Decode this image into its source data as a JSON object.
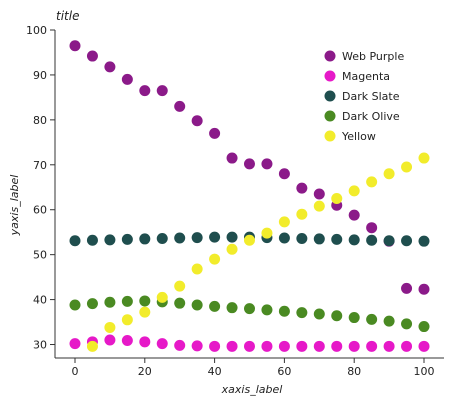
{
  "chart_data": {
    "type": "scatter",
    "title": "title",
    "xlabel": "xaxis_label",
    "ylabel": "yaxis_label",
    "xlim": [
      0,
      100
    ],
    "ylim": [
      27,
      100
    ],
    "xticks": [
      "0",
      "20",
      "40",
      "60",
      "80",
      "100"
    ],
    "yticks": [
      "30",
      "40",
      "50",
      "60",
      "70",
      "80",
      "90",
      "100"
    ],
    "grid": false,
    "legend_position": "top-right",
    "x": [
      0,
      5,
      10,
      15,
      20,
      25,
      30,
      35,
      40,
      45,
      50,
      55,
      60,
      65,
      70,
      75,
      80,
      85,
      90,
      95,
      100
    ],
    "series": [
      {
        "name": "Web Purple",
        "color": "#8b1a89",
        "values": [
          96.5,
          94.2,
          91.8,
          89.0,
          86.5,
          86.5,
          83.0,
          79.8,
          77.0,
          71.5,
          70.2,
          70.2,
          68.0,
          64.8,
          63.5,
          61.0,
          58.8,
          56.0,
          53.0,
          42.5,
          42.3
        ]
      },
      {
        "name": "Magenta",
        "color": "#e619c8",
        "values": [
          30.2,
          30.6,
          31.0,
          30.9,
          30.6,
          30.2,
          29.8,
          29.7,
          29.6,
          29.6,
          29.6,
          29.6,
          29.6,
          29.6,
          29.6,
          29.6,
          29.6,
          29.6,
          29.6,
          29.6,
          29.6
        ]
      },
      {
        "name": "Dark Slate",
        "color": "#1f4e4e",
        "values": [
          53.1,
          53.2,
          53.3,
          53.4,
          53.5,
          53.6,
          53.7,
          53.8,
          53.9,
          53.9,
          53.9,
          53.8,
          53.7,
          53.6,
          53.5,
          53.4,
          53.3,
          53.2,
          53.1,
          53.1,
          53.0
        ]
      },
      {
        "name": "Dark Olive",
        "color": "#4a8a22",
        "values": [
          38.8,
          39.1,
          39.4,
          39.6,
          39.7,
          39.5,
          39.2,
          38.8,
          38.5,
          38.2,
          38.0,
          37.7,
          37.4,
          37.1,
          36.8,
          36.4,
          36.0,
          35.6,
          35.2,
          34.6,
          34.0
        ]
      },
      {
        "name": "Yellow",
        "color": "#f2ec2b",
        "values": [
          null,
          29.6,
          33.8,
          35.5,
          37.2,
          40.5,
          43.0,
          46.8,
          49.0,
          51.2,
          53.2,
          54.8,
          57.3,
          59.0,
          60.8,
          62.5,
          64.2,
          66.2,
          68.0,
          69.5,
          71.5
        ]
      }
    ]
  }
}
